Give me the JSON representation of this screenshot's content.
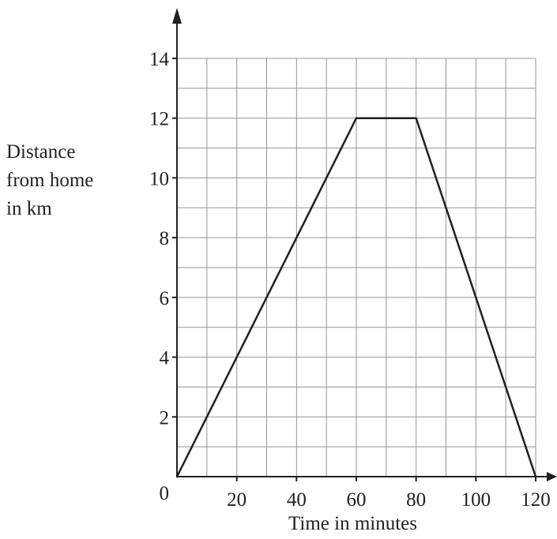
{
  "chart_data": {
    "type": "line",
    "title": "",
    "xlabel": "Time in minutes",
    "ylabel_lines": [
      "Distance",
      "from home",
      "in km"
    ],
    "xlim": [
      0,
      120
    ],
    "ylim": [
      0,
      14
    ],
    "x_ticks": [
      "20",
      "40",
      "60",
      "80",
      "100",
      "120"
    ],
    "y_ticks": [
      "2",
      "4",
      "6",
      "8",
      "10",
      "12",
      "14"
    ],
    "origin_label": "0",
    "grid": true,
    "grid_minor_x": 10,
    "grid_minor_y": 1,
    "series": [
      {
        "x": [
          0,
          60,
          80,
          120
        ],
        "y": [
          0,
          12,
          12,
          0
        ]
      }
    ],
    "colors": {
      "line": "#231f20",
      "grid": "#939598",
      "axis": "#231f20"
    }
  }
}
